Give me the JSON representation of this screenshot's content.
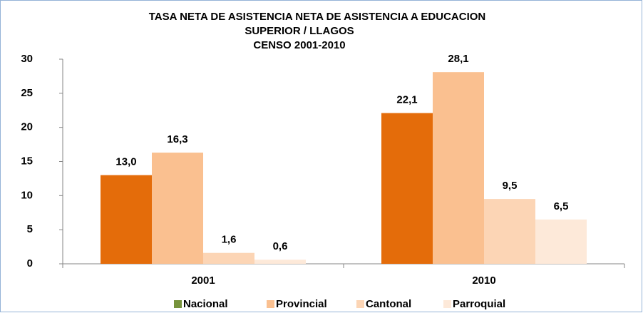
{
  "chart_data": {
    "type": "bar",
    "title": [
      "TASA NETA DE ASISTENCIA NETA DE ASISTENCIA A EDUCACION",
      "SUPERIOR / LLAGOS",
      "CENSO 2001-2010"
    ],
    "categories": [
      "2001",
      "2010"
    ],
    "series": [
      {
        "name": "Nacional",
        "color": "#e46c0a",
        "legend_color": "#77933c",
        "values": [
          13.0,
          22.1
        ],
        "value_labels": [
          "13,0",
          "22,1"
        ],
        "label_bold": true
      },
      {
        "name": "Provincial",
        "color": "#fac090",
        "legend_color": "#fac090",
        "values": [
          16.3,
          28.1
        ],
        "value_labels": [
          "16,3",
          "28,1"
        ],
        "label_bold": true
      },
      {
        "name": "Cantonal",
        "color": "#fcd5b5",
        "legend_color": "#fcd5b5",
        "values": [
          1.6,
          9.5
        ],
        "value_labels": [
          "1,6",
          "9,5"
        ],
        "label_bold": true
      },
      {
        "name": "Parroquial",
        "color": "#fde9d9",
        "legend_color": "#fde9d9",
        "values": [
          0.6,
          6.5
        ],
        "value_labels": [
          "0,6",
          "6,5"
        ],
        "label_bold": false
      }
    ],
    "ylim": [
      0,
      30
    ],
    "yticks": [
      0,
      5,
      10,
      15,
      20,
      25,
      30
    ],
    "grid": false,
    "legend": "bottom"
  }
}
